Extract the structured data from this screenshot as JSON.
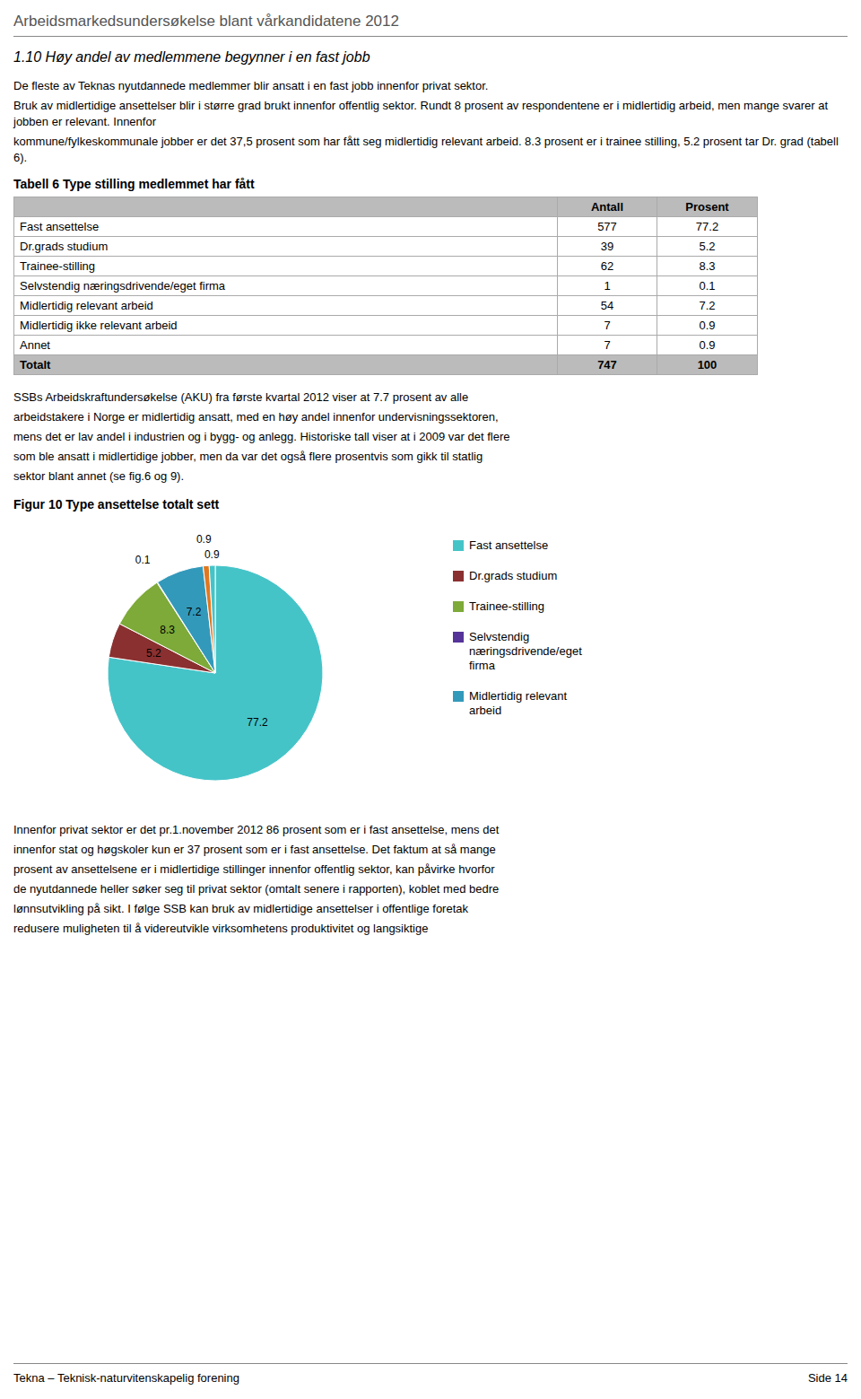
{
  "chart_data": {
    "type": "pie",
    "title": "Figur 10 Type ansettelse totalt sett",
    "categories": [
      "Fast ansettelse",
      "Dr.grads studium",
      "Trainee-stilling",
      "Selvstendig\nnæringsdrivende/eget\nfirma",
      "Midlertidig relevant\narbeid",
      null,
      null
    ],
    "values": [
      77.2,
      5.2,
      8.3,
      0.1,
      7.2,
      0.9,
      0.9
    ],
    "colors": [
      "#45C4C8",
      "#8B3030",
      "#7DAA38",
      "#553399",
      "#3399BB",
      "#E07820",
      "#45C4C8"
    ],
    "data_labels": true,
    "legend": "right"
  },
  "page": {
    "header": "Arbeidsmarkedsundersøkelse blant vårkandidatene 2012",
    "heading": "1.10   Høy andel av medlemmene begynner i en fast jobb",
    "paragraphs_before_table": [
      "De fleste av Teknas nyutdannede medlemmer blir ansatt i en fast jobb innenfor privat sektor.",
      "Bruk av midlertidige ansettelser blir i større grad brukt innenfor offentlig sektor. Rundt 8 prosent av respondentene er i midlertidig arbeid, men mange svarer at jobben er relevant. Innenfor",
      "kommune/fylkeskommunale jobber er det 37,5 prosent som har fått seg midlertidig relevant arbeid. 8.3 prosent er i trainee stilling, 5.2 prosent tar Dr. grad (tabell 6)."
    ],
    "table": {
      "title": "Tabell 6 Type stilling medlemmet har fått",
      "columns": [
        "Antall",
        "Prosent"
      ],
      "rows": [
        [
          "Fast ansettelse",
          577,
          77.2
        ],
        [
          "Dr.grads studium",
          39,
          5.2
        ],
        [
          "Trainee-stilling",
          62,
          8.3
        ],
        [
          "Selvstendig næringsdrivende/eget firma",
          1,
          0.1
        ],
        [
          "Midlertidig relevant arbeid",
          54,
          7.2
        ],
        [
          "Midlertidig ikke relevant arbeid",
          7,
          0.9
        ],
        [
          "Annet",
          7,
          0.9
        ]
      ],
      "total": [
        "Totalt",
        747,
        100
      ]
    },
    "paragraphs_after_table": [
      "SSBs Arbeidskraftundersøkelse (AKU) fra første kvartal 2012 viser at 7.7 prosent av alle",
      "arbeidstakere i Norge er midlertidig ansatt, med en høy andel innenfor undervisningssektoren,",
      "mens det er lav andel i industrien og i bygg- og anlegg. Historiske tall viser at i 2009 var det flere",
      "som ble ansatt i midlertidige jobber, men da var det også flere prosentvis som gikk til statlig",
      "sektor blant annet (se fig.6 og 9)."
    ],
    "paragraphs_after_chart": [
      "Innenfor privat sektor er det pr.1.november 2012 86 prosent som er i fast ansettelse, mens det",
      "innenfor stat og høgskoler kun er 37 prosent som er i fast ansettelse. Det faktum at så mange",
      "prosent av ansettelsene er i midlertidige stillinger innenfor offentlig sektor, kan påvirke hvorfor",
      "de nyutdannede heller søker seg til privat sektor (omtalt senere i rapporten), koblet med bedre",
      "lønnsutvikling på sikt. I følge SSB kan bruk av midlertidige ansettelser i offentlige foretak",
      "redusere  muligheten  til  å  videreutvikle  virksomhetens  produktivitet  og  langsiktige"
    ],
    "footer": [
      "Tekna – Teknisk-naturvitenskapelig forening",
      "Side 14"
    ]
  }
}
